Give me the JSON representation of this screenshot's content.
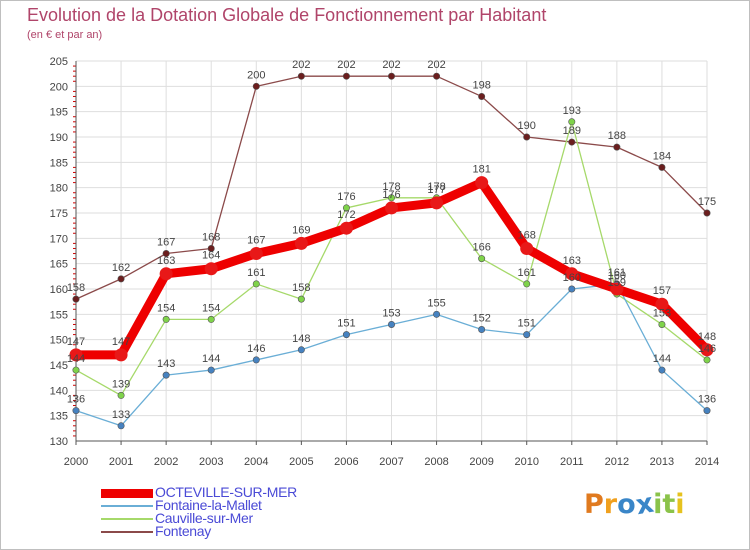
{
  "chart_title": "Evolution de la Dotation Globale de Fonctionnement par Habitant",
  "chart_subtitle": "(en € et par an)",
  "brand": {
    "letters": [
      "P",
      "r",
      "o",
      "x",
      "i",
      "t",
      "i"
    ],
    "colors": [
      "#e07a1f",
      "#f0a01e",
      "#3a86c8",
      "#3a86c8",
      "#8bc34a",
      "#8bc34a",
      "#e6c21e"
    ]
  },
  "colors": {
    "grid": "#dedede",
    "axis": "#555555",
    "tick_label": "#444444",
    "data_label": "#444444",
    "minor_tick": "#d10000"
  },
  "chart_data": {
    "type": "line",
    "title": "Evolution de la Dotation Globale de Fonctionnement par Habitant",
    "subtitle": "(en € et par an)",
    "xlabel": "",
    "ylabel": "",
    "x": [
      "2000",
      "2001",
      "2002",
      "2003",
      "2004",
      "2005",
      "2006",
      "2007",
      "2008",
      "2009",
      "2010",
      "2011",
      "2012",
      "2013",
      "2014"
    ],
    "ylim": [
      130,
      205
    ],
    "yticks": [
      130,
      135,
      140,
      145,
      150,
      155,
      160,
      165,
      170,
      175,
      180,
      185,
      190,
      195,
      200,
      205
    ],
    "grid": true,
    "legend_position": "bottom-left",
    "series": [
      {
        "name": "OCTEVILLE-SUR-MER",
        "color": "#ee0000",
        "point_color": "#e81818",
        "values": [
          147,
          147,
          163,
          164,
          167,
          169,
          172,
          176,
          177,
          181,
          168,
          163,
          160,
          157,
          148
        ],
        "labels": [
          "147",
          "147",
          "163",
          "164",
          "167",
          "169",
          "172",
          "176",
          "177",
          "181",
          "168",
          "163",
          "160",
          "157",
          "148"
        ]
      },
      {
        "name": "Fontaine-la-Mallet",
        "color": "#6aaed6",
        "point_color": "#4682c0",
        "values": [
          136,
          133,
          143,
          144,
          146,
          148,
          151,
          153,
          155,
          152,
          151,
          160,
          161,
          144,
          136
        ],
        "labels": [
          "136",
          "133",
          "143",
          "144",
          "146",
          "148",
          "151",
          "153",
          "155",
          "152",
          "151",
          "160",
          "161",
          "144",
          "136"
        ]
      },
      {
        "name": "Cauville-sur-Mer",
        "color": "#a6d96a",
        "point_color": "#7fd34a",
        "values": [
          144,
          139,
          154,
          154,
          161,
          158,
          176,
          178,
          178,
          166,
          161,
          193,
          159,
          153,
          146
        ],
        "labels": [
          "144",
          "139",
          "154",
          "154",
          "161",
          "158",
          "176",
          "178",
          "178",
          "166",
          "161",
          "193",
          "159",
          "153",
          "146"
        ]
      },
      {
        "name": "Fontenay",
        "color": "#8b4a4a",
        "point_color": "#6b1e1e",
        "values": [
          158,
          162,
          167,
          168,
          200,
          202,
          202,
          202,
          202,
          198,
          190,
          189,
          188,
          184,
          175
        ],
        "labels": [
          "158",
          "162",
          "167",
          "168",
          "200",
          "202",
          "202",
          "202",
          "202",
          "198",
          "190",
          "189",
          "188",
          "184",
          "175"
        ]
      }
    ]
  }
}
